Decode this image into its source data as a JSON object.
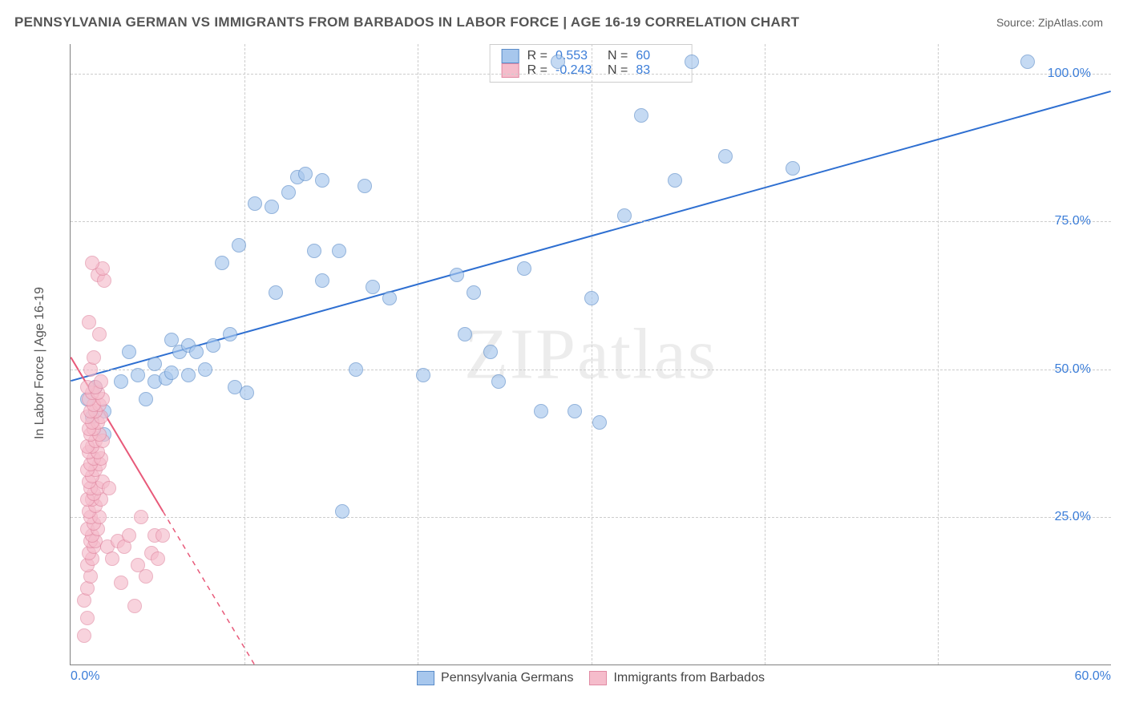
{
  "title": "PENNSYLVANIA GERMAN VS IMMIGRANTS FROM BARBADOS IN LABOR FORCE | AGE 16-19 CORRELATION CHART",
  "source": "Source: ZipAtlas.com",
  "watermark": "ZIPatlas",
  "y_axis": {
    "label": "In Labor Force | Age 16-19"
  },
  "x_axis": {
    "origin_label": "0.0%",
    "max_label": "60.0%"
  },
  "grid": {
    "y_ticks": [
      {
        "value": 25.0,
        "label": "25.0%"
      },
      {
        "value": 50.0,
        "label": "50.0%"
      },
      {
        "value": 75.0,
        "label": "75.0%"
      },
      {
        "value": 100.0,
        "label": "100.0%"
      }
    ],
    "x_tick_positions_pct": [
      16.67,
      33.33,
      50.0,
      66.67,
      83.33
    ]
  },
  "domain": {
    "xmin": -1.0,
    "xmax": 61.0,
    "ymin": 0.0,
    "ymax": 105.0
  },
  "series": [
    {
      "name": "Pennsylvania Germans",
      "fill_color": "#a7c7ed",
      "stroke_color": "#5a8cc9",
      "trend_color": "#2e6fd1",
      "trend_solid_limit_x": 61,
      "R": "0.553",
      "N": "60",
      "trend": {
        "x1": -1,
        "y1": 48,
        "x2": 61,
        "y2": 97
      },
      "points": [
        [
          0,
          45
        ],
        [
          0.3,
          42
        ],
        [
          0.5,
          47
        ],
        [
          1,
          43
        ],
        [
          1,
          39
        ],
        [
          2,
          48
        ],
        [
          2.5,
          53
        ],
        [
          3,
          49
        ],
        [
          3.5,
          45
        ],
        [
          4,
          48
        ],
        [
          4,
          51
        ],
        [
          4.7,
          48.5
        ],
        [
          5,
          49.5
        ],
        [
          5,
          55
        ],
        [
          5.5,
          53
        ],
        [
          6,
          54
        ],
        [
          6,
          49
        ],
        [
          6.5,
          53
        ],
        [
          7,
          50
        ],
        [
          7.5,
          54
        ],
        [
          8,
          68
        ],
        [
          8.5,
          56
        ],
        [
          8.8,
          47
        ],
        [
          9,
          71
        ],
        [
          9.5,
          46
        ],
        [
          10,
          78
        ],
        [
          11,
          77.5
        ],
        [
          11.2,
          63
        ],
        [
          12,
          80
        ],
        [
          12.5,
          82.5
        ],
        [
          13,
          83
        ],
        [
          13.5,
          70
        ],
        [
          14,
          65
        ],
        [
          14,
          82
        ],
        [
          15,
          70
        ],
        [
          15.2,
          26
        ],
        [
          16,
          50
        ],
        [
          16.5,
          81
        ],
        [
          17,
          64
        ],
        [
          18,
          62
        ],
        [
          20,
          49
        ],
        [
          22,
          66
        ],
        [
          22.5,
          56
        ],
        [
          23,
          63
        ],
        [
          24,
          53
        ],
        [
          24.5,
          48
        ],
        [
          26,
          67
        ],
        [
          27,
          43
        ],
        [
          28,
          102
        ],
        [
          29,
          43
        ],
        [
          30,
          62
        ],
        [
          30.5,
          41
        ],
        [
          32,
          76
        ],
        [
          33,
          93
        ],
        [
          35,
          82
        ],
        [
          36,
          102
        ],
        [
          38,
          86
        ],
        [
          42,
          84
        ],
        [
          56,
          102
        ]
      ]
    },
    {
      "name": "Immigrants from Barbados",
      "fill_color": "#f5bccb",
      "stroke_color": "#e18aa3",
      "trend_color": "#e85a7a",
      "trend_solid_limit_x": 4.5,
      "R": "-0.243",
      "N": "83",
      "trend": {
        "x1": -1,
        "y1": 52,
        "x2": 11,
        "y2": -5
      },
      "points": [
        [
          -0.2,
          5
        ],
        [
          -0.2,
          11
        ],
        [
          0,
          8
        ],
        [
          0,
          13
        ],
        [
          0.2,
          15
        ],
        [
          0,
          17
        ],
        [
          0.3,
          18
        ],
        [
          0.1,
          19
        ],
        [
          0.4,
          20
        ],
        [
          0.2,
          21
        ],
        [
          0.5,
          21
        ],
        [
          0.3,
          22
        ],
        [
          0,
          23
        ],
        [
          0.6,
          23
        ],
        [
          0.4,
          24
        ],
        [
          0.2,
          25
        ],
        [
          0.7,
          25
        ],
        [
          0.1,
          26
        ],
        [
          0.5,
          27
        ],
        [
          0.3,
          28
        ],
        [
          0,
          28
        ],
        [
          0.8,
          28
        ],
        [
          0.4,
          29
        ],
        [
          0.2,
          30
        ],
        [
          0.6,
          30
        ],
        [
          0.1,
          31
        ],
        [
          0.9,
          31
        ],
        [
          0.3,
          32
        ],
        [
          0.5,
          33
        ],
        [
          0,
          33
        ],
        [
          0.7,
          34
        ],
        [
          0.2,
          34
        ],
        [
          0.4,
          35
        ],
        [
          0.8,
          35
        ],
        [
          0.1,
          36
        ],
        [
          0.6,
          36
        ],
        [
          0.3,
          37
        ],
        [
          0,
          37
        ],
        [
          0.5,
          38
        ],
        [
          0.9,
          38
        ],
        [
          0.2,
          39
        ],
        [
          0.7,
          39
        ],
        [
          0.4,
          40
        ],
        [
          0.1,
          40
        ],
        [
          0.6,
          41
        ],
        [
          0.3,
          41
        ],
        [
          0,
          42
        ],
        [
          0.8,
          42
        ],
        [
          0.5,
          43
        ],
        [
          0.2,
          43
        ],
        [
          0.7,
          44
        ],
        [
          0.4,
          44
        ],
        [
          0.1,
          45
        ],
        [
          0.9,
          45
        ],
        [
          0.3,
          46
        ],
        [
          0.6,
          46
        ],
        [
          0,
          47
        ],
        [
          0.5,
          47
        ],
        [
          0.8,
          48
        ],
        [
          0.2,
          50
        ],
        [
          0.4,
          52
        ],
        [
          0.7,
          56
        ],
        [
          0.1,
          58
        ],
        [
          0.6,
          66
        ],
        [
          1.0,
          65
        ],
        [
          0.9,
          67
        ],
        [
          0.3,
          68
        ],
        [
          1.2,
          20
        ],
        [
          1.5,
          18
        ],
        [
          1.8,
          21
        ],
        [
          1.3,
          30
        ],
        [
          2,
          14
        ],
        [
          2.2,
          20
        ],
        [
          2.5,
          22
        ],
        [
          2.8,
          10
        ],
        [
          3,
          17
        ],
        [
          3.2,
          25
        ],
        [
          3.5,
          15
        ],
        [
          3.8,
          19
        ],
        [
          4,
          22
        ],
        [
          4.2,
          18
        ],
        [
          4.5,
          22
        ]
      ]
    }
  ],
  "legend_bottom": [
    {
      "label": "Pennsylvania Germans",
      "swatch_fill": "#a7c7ed",
      "swatch_stroke": "#5a8cc9"
    },
    {
      "label": "Immigrants from Barbados",
      "swatch_fill": "#f5bccb",
      "swatch_stroke": "#e18aa3"
    }
  ]
}
